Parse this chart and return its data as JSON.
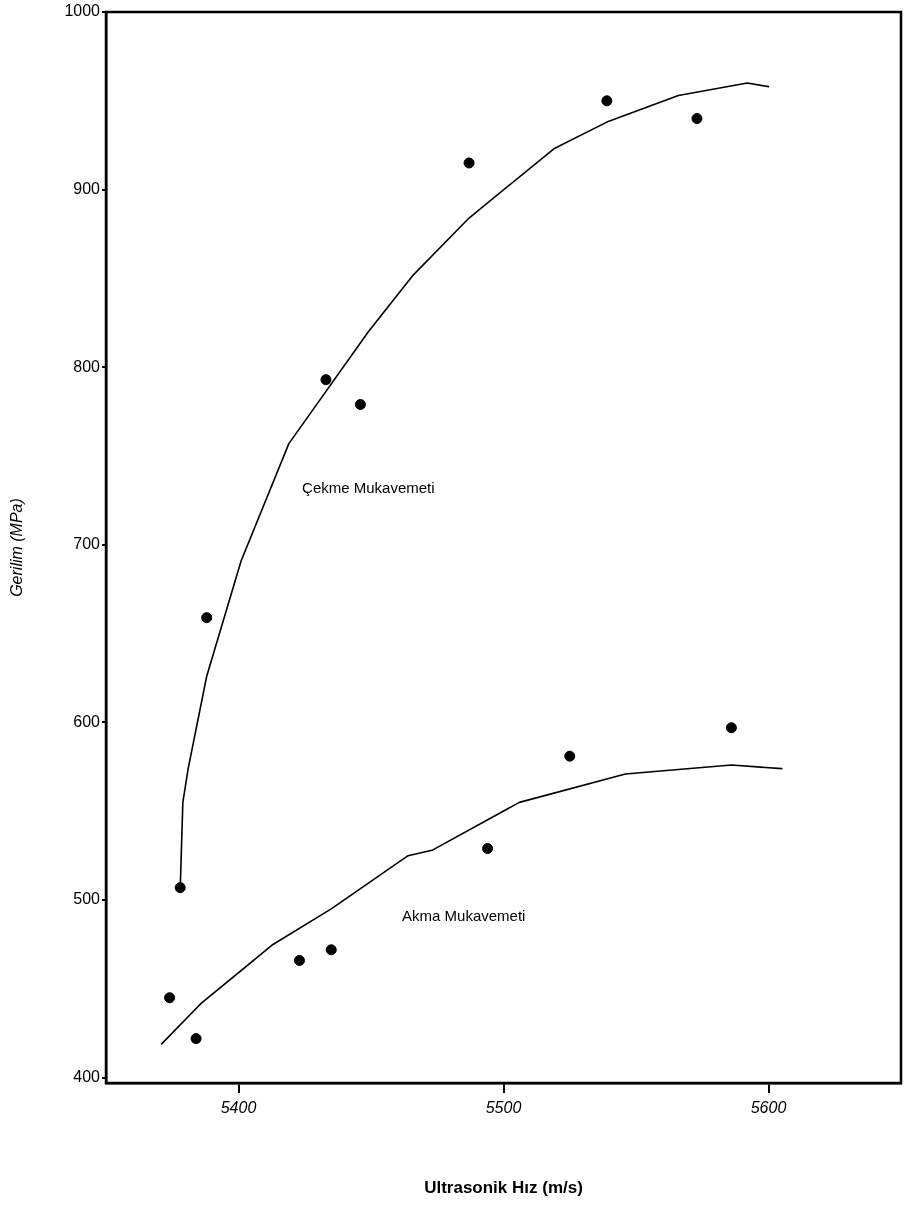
{
  "chart_data": {
    "type": "scatter",
    "xlabel": "Ultrasonik Hız (m/s)",
    "ylabel": "Gerilim (MPa)",
    "xlim": [
      5350,
      5650
    ],
    "xticks": [
      5400,
      5500,
      5600
    ],
    "ylim": [
      397,
      1000
    ],
    "yticks": [
      400,
      500,
      600,
      700,
      800,
      900,
      1000
    ],
    "grid": false,
    "legend": false,
    "marker": "circle",
    "series": [
      {
        "color": "#000000",
        "x": [
          5378,
          5388,
          5433,
          5446,
          5487,
          5539,
          5573
        ],
        "values": [
          507,
          659,
          793,
          779,
          915,
          950,
          940
        ]
      },
      {
        "type": "line",
        "marker": "none",
        "line_style": "solid",
        "color": "#000000",
        "x": [
          5378,
          5379,
          5381,
          5388,
          5401,
          5419,
          5449,
          5466,
          5487,
          5519,
          5539,
          5566,
          5592,
          5600
        ],
        "values": [
          506,
          555,
          574,
          626,
          691,
          757,
          820,
          852,
          884,
          923,
          938,
          953,
          960,
          958
        ]
      },
      {
        "color": "#000000",
        "x": [
          5374,
          5384,
          5423,
          5435,
          5494,
          5525,
          5586
        ],
        "values": [
          445,
          422,
          466,
          472,
          529,
          581,
          597
        ]
      },
      {
        "type": "line",
        "marker": "none",
        "line_style": "solid",
        "color": "#000000",
        "x": [
          5371,
          5386,
          5413,
          5435,
          5464,
          5473,
          5506,
          5546,
          5586,
          5605
        ],
        "values": [
          419,
          442,
          475,
          495,
          525,
          528,
          555,
          571,
          576,
          574
        ]
      }
    ],
    "annotations": [
      "Çekme Mukavemeti",
      "Akma Mukavemeti"
    ]
  }
}
